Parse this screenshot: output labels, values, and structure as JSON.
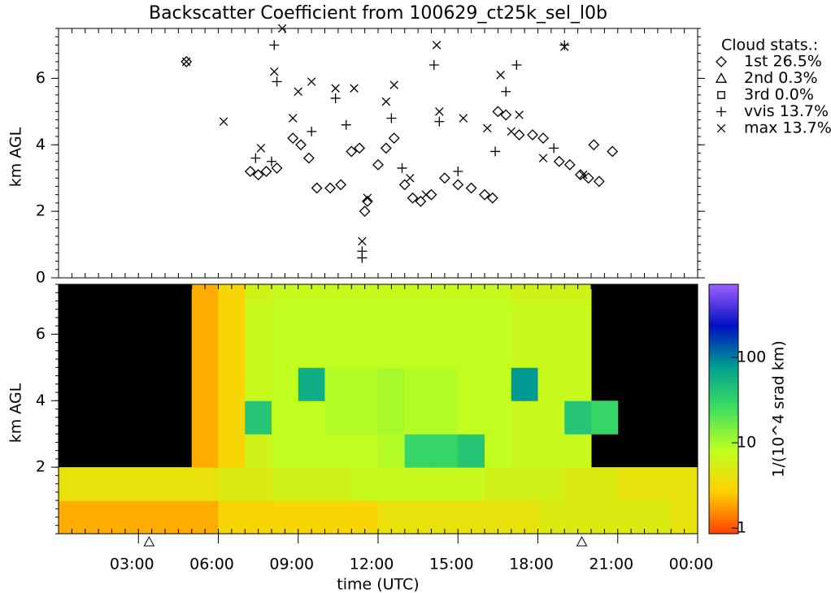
{
  "chart_data": [
    {
      "type": "scatter",
      "title": "Backscatter Coefficient from 100629_ct25k_sel_l0b",
      "ylabel": "km AGL",
      "xlim": [
        0,
        24
      ],
      "ylim": [
        0,
        7.5
      ],
      "yticks": [
        0,
        2,
        4,
        6
      ],
      "legend_title": "Cloud stats.:",
      "series": [
        {
          "name": "1st 26.5%",
          "marker": "diamond",
          "color": "#000000",
          "x": [
            4.8,
            7.2,
            7.5,
            7.8,
            8.2,
            8.8,
            9.1,
            9.4,
            9.7,
            10.2,
            10.6,
            11.0,
            11.3,
            11.5,
            11.6,
            12.0,
            12.3,
            12.6,
            13.0,
            13.3,
            13.6,
            14.0,
            14.5,
            15.0,
            15.5,
            16.0,
            16.3,
            16.5,
            16.8,
            17.3,
            17.8,
            18.2,
            18.8,
            19.2,
            19.6,
            19.9,
            20.3,
            20.1,
            20.8
          ],
          "y": [
            6.5,
            3.2,
            3.1,
            3.2,
            3.3,
            4.2,
            4.0,
            3.6,
            2.7,
            2.7,
            2.8,
            3.8,
            3.9,
            2.0,
            2.3,
            3.4,
            3.9,
            4.2,
            2.8,
            2.4,
            2.3,
            2.5,
            3.0,
            2.8,
            2.7,
            2.5,
            2.4,
            5.0,
            4.9,
            4.3,
            4.3,
            4.2,
            3.5,
            3.4,
            3.1,
            3.0,
            2.9,
            4.0,
            3.8
          ]
        },
        {
          "name": "2nd  0.3%",
          "marker": "triangle",
          "color": "#000000",
          "x": [],
          "y": []
        },
        {
          "name": "3rd  0.0%",
          "marker": "square",
          "color": "#000000",
          "x": [],
          "y": []
        },
        {
          "name": "vvis 13.7%",
          "marker": "plus",
          "color": "#000000",
          "x": [
            8.1,
            8.2,
            8.0,
            7.4,
            9.5,
            10.4,
            11.4,
            11.4,
            12.5,
            14.1,
            14.3,
            15.0,
            16.4,
            16.8,
            17.2,
            19.0,
            18.6,
            10.8,
            12.9
          ],
          "y": [
            7.0,
            5.9,
            3.5,
            3.6,
            4.4,
            5.4,
            0.8,
            0.6,
            4.8,
            6.4,
            4.7,
            3.2,
            3.8,
            5.6,
            6.4,
            7.0,
            3.9,
            4.6,
            3.3
          ]
        },
        {
          "name": "max 13.7%",
          "marker": "cross",
          "color": "#000000",
          "x": [
            4.8,
            6.2,
            7.6,
            8.1,
            8.4,
            8.8,
            9.0,
            9.5,
            10.4,
            11.1,
            11.4,
            11.6,
            12.3,
            12.6,
            13.2,
            14.2,
            14.3,
            15.2,
            16.1,
            16.6,
            17.0,
            17.3,
            18.2,
            19.0,
            19.7,
            13.8
          ],
          "y": [
            6.5,
            4.7,
            3.9,
            6.2,
            7.5,
            4.8,
            5.6,
            5.9,
            5.7,
            5.7,
            1.1,
            2.4,
            5.3,
            5.8,
            3.0,
            7.0,
            5.0,
            4.8,
            4.5,
            6.1,
            4.4,
            4.9,
            3.6,
            6.95,
            3.1,
            2.5
          ]
        }
      ]
    },
    {
      "type": "heatmap",
      "ylabel": "km AGL",
      "xlabel": "time (UTC)",
      "xlim": [
        0,
        24
      ],
      "ylim": [
        0,
        7.5
      ],
      "yticks": [
        2,
        4,
        6
      ],
      "xticks": [
        {
          "value": 3,
          "label": "03:00"
        },
        {
          "value": 6,
          "label": "06:00"
        },
        {
          "value": 9,
          "label": "09:00"
        },
        {
          "value": 12,
          "label": "12:00"
        },
        {
          "value": 15,
          "label": "15:00"
        },
        {
          "value": 18,
          "label": "18:00"
        },
        {
          "value": 21,
          "label": "21:00"
        },
        {
          "value": 24,
          "label": "00:00"
        }
      ],
      "markers_x": [
        3.4,
        19.65
      ],
      "x_bins": [
        0,
        1,
        2,
        3,
        4,
        5,
        6,
        7,
        8,
        9,
        10,
        11,
        12,
        13,
        14,
        15,
        16,
        17,
        18,
        19,
        20,
        21,
        22,
        23,
        24
      ],
      "y_bins": [
        0,
        1,
        2,
        3,
        4,
        5,
        6,
        7,
        7.5
      ],
      "values": [
        [
          2,
          2,
          2,
          2,
          2,
          2,
          3,
          3,
          3,
          3,
          3,
          3,
          4,
          4,
          4,
          4,
          4,
          4,
          5,
          5,
          5,
          5,
          5,
          4
        ],
        [
          4,
          4,
          4,
          4,
          4,
          4,
          5,
          5,
          6,
          6,
          6,
          7,
          7,
          7,
          7,
          7,
          6,
          6,
          6,
          5,
          5,
          4,
          4,
          4
        ],
        [
          null,
          null,
          null,
          null,
          null,
          2,
          3,
          6,
          8,
          8,
          8,
          8,
          9,
          30,
          30,
          40,
          8,
          7,
          7,
          7,
          null,
          null,
          null,
          null
        ],
        [
          null,
          null,
          null,
          null,
          null,
          2,
          3,
          40,
          8,
          8,
          9,
          9,
          10,
          9,
          9,
          8,
          8,
          7,
          7,
          40,
          30,
          null,
          null,
          null
        ],
        [
          null,
          null,
          null,
          null,
          null,
          2,
          3,
          7,
          8,
          60,
          9,
          9,
          10,
          9,
          9,
          8,
          8,
          80,
          7,
          7,
          null,
          null,
          null,
          null
        ],
        [
          null,
          null,
          null,
          null,
          null,
          2,
          3,
          7,
          8,
          8,
          8,
          8,
          8,
          8,
          8,
          8,
          8,
          7,
          7,
          7,
          null,
          null,
          null,
          null
        ],
        [
          null,
          null,
          null,
          null,
          null,
          2,
          3,
          7,
          8,
          8,
          8,
          8,
          8,
          8,
          8,
          8,
          8,
          7,
          7,
          7,
          null,
          null,
          null,
          null
        ],
        [
          null,
          null,
          null,
          null,
          null,
          2,
          3,
          6,
          7,
          7,
          7,
          7,
          7,
          7,
          7,
          7,
          7,
          6,
          6,
          6,
          null,
          null,
          null,
          null
        ]
      ],
      "colormap": [
        "#ff4000",
        "#ffd000",
        "#c0ff20",
        "#40e060",
        "#00a090",
        "#0010c0",
        "#a060ff"
      ],
      "colorbar": {
        "label": "1/(10^4 srad km)",
        "clim": [
          0.86,
          720
        ],
        "ticks": [
          1,
          10,
          100
        ],
        "log": true
      }
    }
  ]
}
